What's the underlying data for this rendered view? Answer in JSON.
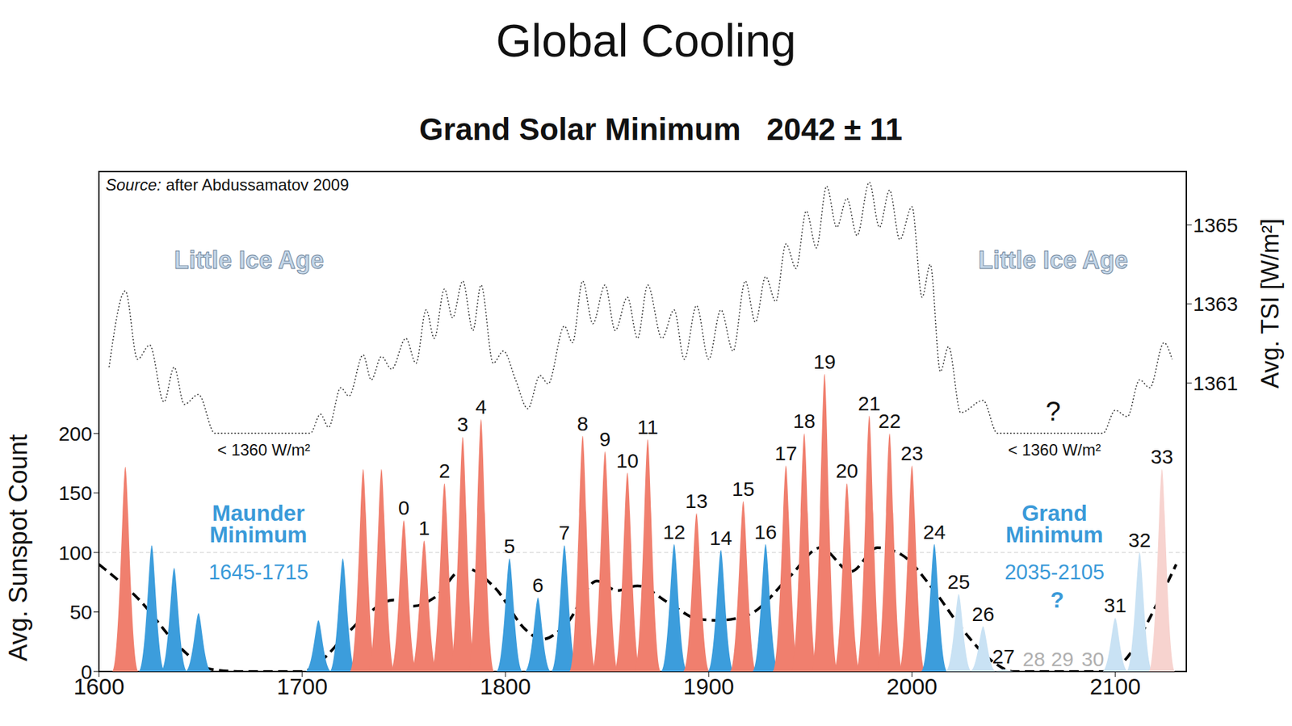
{
  "chart_data": {
    "type": "combo",
    "title": "Global Cooling",
    "subtitle": "Grand Solar Minimum   2042 ± 11",
    "source": "Source: after Abdussamatov 2009",
    "y_label": "Avg. Sunspot Count",
    "y2_label": "Avg. TSI [W/m²]",
    "xlim": [
      1600,
      2135
    ],
    "xticks": [
      1600,
      1700,
      1800,
      1900,
      2000,
      2100
    ],
    "ylim": [
      0,
      420
    ],
    "yticks": [
      0,
      50,
      100,
      150,
      200
    ],
    "y2lim": [
      1353.7,
      1366.35
    ],
    "y2ticks": [
      1361,
      1363,
      1365
    ],
    "grid": false,
    "reference_lines": [
      100
    ],
    "series": [
      {
        "type": "area",
        "x": [
          1613,
          1626,
          1637,
          1649,
          1708,
          1720,
          1730,
          1739,
          1750,
          1760,
          1770,
          1779,
          1788,
          1802,
          1816,
          1829,
          1838,
          1849,
          1860,
          1870,
          1883,
          1894,
          1906,
          1917,
          1928,
          1938,
          1947,
          1957,
          1968,
          1979,
          1989,
          2000,
          2011,
          2023,
          2035,
          2045,
          2060,
          2074,
          2089,
          2100,
          2112,
          2123
        ],
        "values": [
          172,
          106,
          87,
          49,
          43,
          95,
          170,
          170,
          127,
          110,
          158,
          197,
          212,
          95,
          62,
          106,
          198,
          185,
          167,
          195,
          107,
          133,
          102,
          143,
          107,
          173,
          200,
          250,
          158,
          215,
          200,
          173,
          107,
          65,
          38,
          2,
          0,
          0,
          0,
          45,
          100,
          170
        ],
        "labels": [
          null,
          null,
          null,
          null,
          null,
          null,
          null,
          null,
          "0",
          "1",
          "2",
          "3",
          "4",
          "5",
          "6",
          "7",
          "8",
          "9",
          "10",
          "11",
          "12",
          "13",
          "14",
          "15",
          "16",
          "17",
          "18",
          "19",
          "20",
          "21",
          "22",
          "23",
          "24",
          "25",
          "26",
          "27",
          "28",
          "29",
          "30",
          "31",
          "32",
          "33"
        ],
        "colors": [
          "#f07f6e",
          "#3c9ddc",
          "#3c9ddc",
          "#3c9ddc",
          "#3c9ddc",
          "#3c9ddc",
          "#f07f6e",
          "#f07f6e",
          "#f07f6e",
          "#f07f6e",
          "#f07f6e",
          "#f07f6e",
          "#f07f6e",
          "#3c9ddc",
          "#3c9ddc",
          "#3c9ddc",
          "#f07f6e",
          "#f07f6e",
          "#f07f6e",
          "#f07f6e",
          "#3c9ddc",
          "#f07f6e",
          "#3c9ddc",
          "#f07f6e",
          "#3c9ddc",
          "#f07f6e",
          "#f07f6e",
          "#f07f6e",
          "#f07f6e",
          "#f07f6e",
          "#f07f6e",
          "#f07f6e",
          "#3c9ddc",
          "#c9e2f4",
          "#c9e2f4",
          "#c9e2f4",
          "#c9e2f4",
          "#c9e2f4",
          "#c9e2f4",
          "#c9e2f4",
          "#c9e2f4",
          "#f7d3cf"
        ]
      },
      {
        "type": "line",
        "line_style": "dashed",
        "color": "#000000",
        "x": [
          1600,
          1620,
          1640,
          1655,
          1670,
          1685,
          1700,
          1710,
          1720,
          1730,
          1745,
          1755,
          1765,
          1780,
          1795,
          1810,
          1818,
          1830,
          1845,
          1855,
          1865,
          1880,
          1895,
          1905,
          1920,
          1940,
          1955,
          1970,
          1983,
          1995,
          2010,
          2025,
          2040,
          2050,
          2065,
          2080,
          2095,
          2105,
          2120,
          2130
        ],
        "values": [
          90,
          60,
          20,
          2,
          0,
          0,
          0,
          10,
          28,
          45,
          60,
          55,
          62,
          87,
          70,
          35,
          27,
          40,
          76,
          68,
          72,
          58,
          44,
          43,
          48,
          80,
          104,
          84,
          104,
          98,
          70,
          35,
          8,
          0,
          0,
          0,
          0,
          10,
          55,
          90
        ]
      },
      {
        "type": "line",
        "line_style": "dotted",
        "color": "#333333",
        "axis": "y2",
        "x": [
          1605,
          1613,
          1619,
          1625,
          1632,
          1637,
          1642,
          1649,
          1657,
          1704,
          1709,
          1713,
          1719,
          1723,
          1730,
          1734,
          1739,
          1744,
          1751,
          1756,
          1761,
          1765,
          1770,
          1774,
          1779,
          1784,
          1788,
          1794,
          1799,
          1805,
          1811,
          1817,
          1821,
          1829,
          1833,
          1838,
          1843,
          1849,
          1854,
          1860,
          1865,
          1870,
          1877,
          1883,
          1888,
          1894,
          1900,
          1906,
          1912,
          1918,
          1923,
          1928,
          1933,
          1938,
          1943,
          1948,
          1953,
          1958,
          1963,
          1968,
          1973,
          1979,
          1984,
          1989,
          1994,
          2000,
          2005,
          2009,
          2014,
          2018,
          2024,
          2035,
          2042,
          2094,
          2100,
          2106,
          2112,
          2117,
          2124,
          2128
        ],
        "values": [
          1361.4,
          1363.33,
          1361.6,
          1361.96,
          1360.52,
          1361.4,
          1360.46,
          1360.71,
          1359.73,
          1359.73,
          1360.21,
          1359.88,
          1360.88,
          1360.67,
          1361.71,
          1361.08,
          1361.67,
          1361.35,
          1362.13,
          1361.5,
          1362.85,
          1362.13,
          1363.38,
          1362.65,
          1363.58,
          1362.33,
          1363.48,
          1361.5,
          1361.81,
          1361.08,
          1360.35,
          1361.19,
          1360.98,
          1362.44,
          1362.02,
          1363.58,
          1362.5,
          1363.48,
          1362.33,
          1363.17,
          1362.13,
          1363.48,
          1362.13,
          1362.85,
          1361.6,
          1362.96,
          1361.6,
          1362.85,
          1361.81,
          1363.58,
          1362.54,
          1363.69,
          1363.06,
          1364.52,
          1363.9,
          1365.35,
          1364.42,
          1365.98,
          1364.94,
          1365.67,
          1364.73,
          1366.08,
          1364.94,
          1365.88,
          1364.63,
          1365.46,
          1363.17,
          1364,
          1361.29,
          1361.92,
          1360.25,
          1360.56,
          1359.73,
          1359.73,
          1360.31,
          1360.15,
          1361.08,
          1360.88,
          1362.02,
          1361.6
        ]
      }
    ],
    "annotations": [
      "Little Ice Age",
      "Little Ice Age",
      "< 1360 W/m²",
      "< 1360 W/m²",
      "?",
      "Maunder Minimum",
      "1645-1715",
      "Grand Minimum",
      "2035-2105",
      "?"
    ]
  }
}
